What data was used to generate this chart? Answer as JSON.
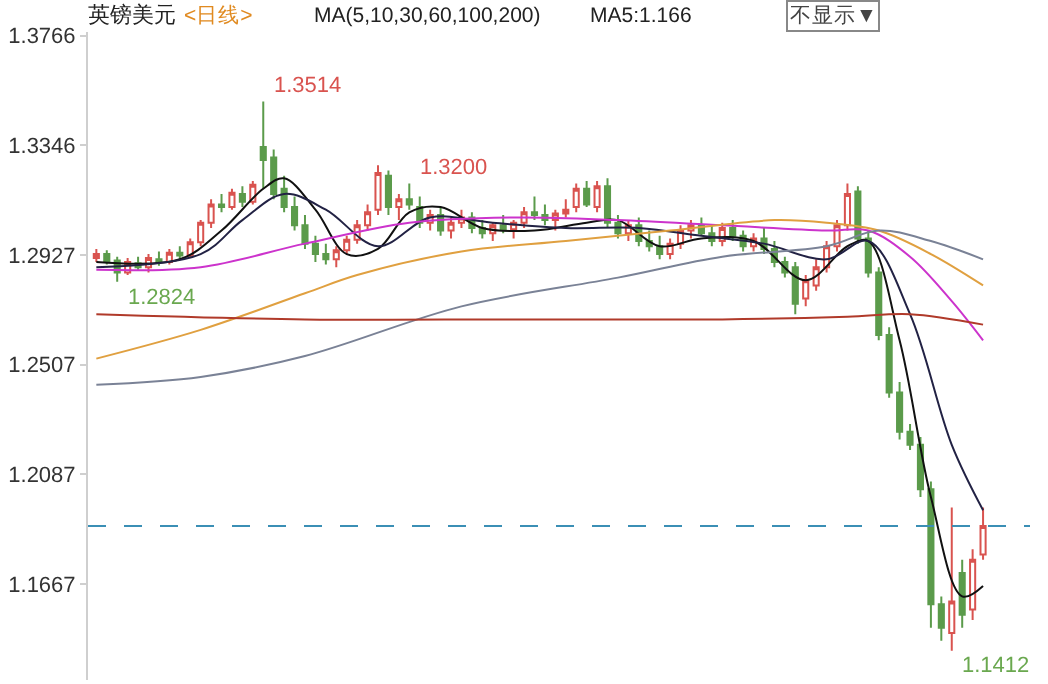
{
  "chart_data": {
    "type": "candlestick",
    "title": "英镑美元",
    "annotations": [
      "<日线>",
      "MA(5,10,30,60,100,200)",
      "MA5:1.166",
      "不显示▼",
      "1.3514",
      "1.3200",
      "1.2824",
      "1.1412"
    ],
    "categories": [
      null,
      null,
      null,
      null,
      null,
      null,
      null,
      null,
      null,
      null,
      null,
      null,
      null,
      null,
      null,
      null,
      null,
      null,
      null,
      null,
      null,
      null,
      null,
      null,
      null,
      null,
      null,
      null,
      null,
      null,
      null,
      null,
      null,
      null,
      null,
      null,
      null,
      null,
      null,
      null,
      null,
      null,
      null,
      null,
      null,
      null,
      null,
      null,
      null,
      null,
      null,
      null,
      null,
      null,
      null,
      null,
      null,
      null,
      null,
      null,
      null,
      null,
      null,
      null,
      null,
      null,
      null,
      null,
      null,
      null,
      null,
      null,
      null,
      null,
      null,
      null,
      null,
      null,
      null,
      null,
      null,
      null,
      null,
      null,
      null,
      null
    ],
    "colors": [
      "#d9534f",
      "#5b9b4b",
      "#5b9b4b",
      "#d9534f",
      "#5b9b4b",
      "#d9534f",
      "#5b9b4b",
      "#d9534f",
      "#5b9b4b",
      "#d9534f",
      "#d9534f",
      "#d9534f",
      "#5b9b4b",
      "#d9534f",
      "#5b9b4b",
      "#d9534f",
      "#5b9b4b",
      "#5b9b4b",
      "#5b9b4b",
      "#5b9b4b",
      "#5b9b4b",
      "#5b9b4b",
      "#5b9b4b",
      "#d9534f",
      "#d9534f",
      "#d9534f",
      "#d9534f",
      "#d9534f",
      "#5b9b4b",
      "#d9534f",
      "#5b9b4b",
      "#5b9b4b",
      "#d9534f",
      "#5b9b4b",
      "#d9534f",
      "#d9534f",
      "#5b9b4b",
      "#5b9b4b",
      "#d9534f",
      "#5b9b4b",
      "#d9534f",
      "#d9534f",
      "#5b9b4b",
      "#5b9b4b",
      "#d9534f",
      "#d9534f",
      "#d9534f",
      "#5b9b4b",
      "#d9534f",
      "#5b9b4b",
      "#5b9b4b",
      "#d9534f",
      "#5b9b4b",
      "#5b9b4b",
      "#5b9b4b",
      "#d9534f",
      "#d9534f",
      "#d9534f",
      "#5b9b4b",
      "#5b9b4b",
      "#d9534f",
      "#5b9b4b",
      "#5b9b4b",
      "#d9534f",
      "#5b9b4b",
      "#5b9b4b",
      "#5b9b4b",
      "#5b9b4b",
      "#d9534f",
      "#d9534f",
      "#d9534f",
      "#d9534f",
      "#d9534f",
      "#5b9b4b",
      "#5b9b4b",
      "#5b9b4b",
      "#5b9b4b",
      "#5b9b4b",
      "#5b9b4b",
      "#5b9b4b",
      "#5b9b4b",
      "#5b9b4b",
      "#d9534f",
      "#5b9b4b",
      "#d9534f",
      "#d9534f"
    ],
    "ohlc": [
      [
        1.2915,
        1.295,
        1.29,
        1.293
      ],
      [
        1.293,
        1.2945,
        1.289,
        1.29
      ],
      [
        1.2905,
        1.292,
        1.2824,
        1.286
      ],
      [
        1.286,
        1.2915,
        1.285,
        1.29
      ],
      [
        1.2895,
        1.292,
        1.287,
        1.288
      ],
      [
        1.288,
        1.293,
        1.286,
        1.2915
      ],
      [
        1.291,
        1.294,
        1.2885,
        1.29
      ],
      [
        1.29,
        1.295,
        1.289,
        1.2935
      ],
      [
        1.2935,
        1.296,
        1.291,
        1.2925
      ],
      [
        1.2925,
        1.299,
        1.2915,
        1.2975
      ],
      [
        1.2975,
        1.306,
        1.296,
        1.305
      ],
      [
        1.305,
        1.314,
        1.303,
        1.312
      ],
      [
        1.312,
        1.316,
        1.309,
        1.311
      ],
      [
        1.311,
        1.318,
        1.31,
        1.3165
      ],
      [
        1.316,
        1.319,
        1.311,
        1.313
      ],
      [
        1.313,
        1.321,
        1.312,
        1.3195
      ],
      [
        1.334,
        1.3514,
        1.318,
        1.329
      ],
      [
        1.33,
        1.333,
        1.314,
        1.316
      ],
      [
        1.318,
        1.323,
        1.309,
        1.311
      ],
      [
        1.311,
        1.315,
        1.302,
        1.304
      ],
      [
        1.304,
        1.308,
        1.295,
        1.297
      ],
      [
        1.297,
        1.3,
        1.29,
        1.293
      ],
      [
        1.293,
        1.297,
        1.289,
        1.291
      ],
      [
        1.291,
        1.296,
        1.288,
        1.2945
      ],
      [
        1.2945,
        1.3,
        1.293,
        1.2985
      ],
      [
        1.2985,
        1.306,
        1.297,
        1.304
      ],
      [
        1.304,
        1.312,
        1.302,
        1.309
      ],
      [
        1.31,
        1.327,
        1.308,
        1.324
      ],
      [
        1.323,
        1.325,
        1.308,
        1.311
      ],
      [
        1.311,
        1.316,
        1.306,
        1.314
      ],
      [
        1.314,
        1.32,
        1.31,
        1.312
      ],
      [
        1.311,
        1.315,
        1.303,
        1.305
      ],
      [
        1.305,
        1.31,
        1.302,
        1.308
      ],
      [
        1.308,
        1.311,
        1.3,
        1.302
      ],
      [
        1.302,
        1.307,
        1.299,
        1.305
      ],
      [
        1.305,
        1.31,
        1.303,
        1.307
      ],
      [
        1.307,
        1.309,
        1.301,
        1.303
      ],
      [
        1.303,
        1.306,
        1.299,
        1.301
      ],
      [
        1.301,
        1.305,
        1.298,
        1.304
      ],
      [
        1.304,
        1.308,
        1.301,
        1.3025
      ],
      [
        1.3025,
        1.306,
        1.299,
        1.305
      ],
      [
        1.305,
        1.311,
        1.303,
        1.309
      ],
      [
        1.309,
        1.315,
        1.306,
        1.308
      ],
      [
        1.308,
        1.312,
        1.304,
        1.306
      ],
      [
        1.306,
        1.31,
        1.302,
        1.3085
      ],
      [
        1.3085,
        1.314,
        1.307,
        1.31
      ],
      [
        1.311,
        1.32,
        1.309,
        1.318
      ],
      [
        1.318,
        1.321,
        1.311,
        1.312
      ],
      [
        1.311,
        1.321,
        1.309,
        1.319
      ],
      [
        1.319,
        1.322,
        1.303,
        1.305
      ],
      [
        1.305,
        1.308,
        1.299,
        1.301
      ],
      [
        1.301,
        1.306,
        1.298,
        1.304
      ],
      [
        1.304,
        1.307,
        1.296,
        1.298
      ],
      [
        1.298,
        1.302,
        1.294,
        1.296
      ],
      [
        1.296,
        1.3,
        1.291,
        1.293
      ],
      [
        1.293,
        1.299,
        1.291,
        1.297
      ],
      [
        1.297,
        1.304,
        1.295,
        1.302
      ],
      [
        1.302,
        1.306,
        1.299,
        1.304
      ],
      [
        1.304,
        1.307,
        1.3,
        1.301
      ],
      [
        1.301,
        1.304,
        1.296,
        1.298
      ],
      [
        1.298,
        1.305,
        1.296,
        1.303
      ],
      [
        1.303,
        1.306,
        1.298,
        1.3
      ],
      [
        1.3,
        1.302,
        1.294,
        1.296
      ],
      [
        1.296,
        1.301,
        1.294,
        1.299
      ],
      [
        1.299,
        1.303,
        1.293,
        1.295
      ],
      [
        1.295,
        1.298,
        1.288,
        1.29
      ],
      [
        1.29,
        1.292,
        1.284,
        1.286
      ],
      [
        1.288,
        1.29,
        1.27,
        1.274
      ],
      [
        1.276,
        1.285,
        1.273,
        1.283
      ],
      [
        1.281,
        1.291,
        1.279,
        1.288
      ],
      [
        1.288,
        1.298,
        1.286,
        1.296
      ],
      [
        1.296,
        1.306,
        1.294,
        1.304
      ],
      [
        1.304,
        1.32,
        1.302,
        1.316
      ],
      [
        1.317,
        1.319,
        1.297,
        1.299
      ],
      [
        1.299,
        1.302,
        1.284,
        1.286
      ],
      [
        1.286,
        1.288,
        1.26,
        1.262
      ],
      [
        1.262,
        1.265,
        1.238,
        1.24
      ],
      [
        1.24,
        1.244,
        1.222,
        1.225
      ],
      [
        1.225,
        1.228,
        1.218,
        1.22
      ],
      [
        1.22,
        1.223,
        1.2,
        1.203
      ],
      [
        1.203,
        1.206,
        1.15,
        1.159
      ],
      [
        1.159,
        1.162,
        1.145,
        1.15
      ],
      [
        1.148,
        1.196,
        1.1412,
        1.16
      ],
      [
        1.171,
        1.176,
        1.15,
        1.155
      ],
      [
        1.157,
        1.18,
        1.153,
        1.176
      ],
      [
        1.178,
        1.196,
        1.176,
        1.1889
      ]
    ],
    "series": [
      {
        "type": "line",
        "color": "#111111",
        "values": [
          1.29,
          null,
          null,
          null,
          null,
          null,
          null,
          null,
          1.291,
          null,
          null,
          null,
          1.302,
          null,
          null,
          null,
          1.318,
          null,
          1.322,
          null,
          null,
          1.31,
          null,
          null,
          1.293,
          null,
          null,
          1.295,
          null,
          null,
          1.309,
          null,
          null,
          1.311,
          null,
          null,
          null,
          1.303,
          null,
          null,
          null,
          null,
          1.302,
          null,
          null,
          null,
          null,
          1.305,
          null,
          null,
          1.306,
          null,
          null,
          null,
          1.296,
          null,
          null,
          null,
          1.299,
          null,
          null,
          null,
          null,
          1.298,
          null,
          null,
          null,
          null,
          1.283,
          null,
          null,
          null,
          1.296,
          null,
          1.298,
          null,
          null,
          1.26,
          null,
          null,
          1.2,
          null,
          null,
          1.162,
          null,
          1.166
        ]
      },
      {
        "type": "line",
        "color": "#222244",
        "values": [
          1.288,
          null,
          null,
          null,
          null,
          null,
          null,
          null,
          null,
          null,
          1.293,
          null,
          null,
          null,
          1.306,
          null,
          null,
          null,
          1.316,
          null,
          null,
          null,
          1.31,
          null,
          null,
          null,
          null,
          1.296,
          null,
          null,
          null,
          null,
          1.307,
          null,
          null,
          null,
          null,
          null,
          1.305,
          null,
          null,
          null,
          null,
          null,
          null,
          1.303,
          null,
          null,
          null,
          null,
          null,
          null,
          1.303,
          null,
          null,
          null,
          null,
          null,
          1.3,
          null,
          null,
          null,
          null,
          null,
          1.297,
          null,
          null,
          null,
          null,
          null,
          1.291,
          null,
          null,
          null,
          1.298,
          null,
          null,
          null,
          1.27,
          null,
          null,
          null,
          1.22,
          null,
          null,
          1.195
        ]
      },
      {
        "type": "line",
        "color": "#cc33cc",
        "values": [
          1.287,
          null,
          null,
          null,
          null,
          null,
          null,
          null,
          null,
          null,
          1.288,
          null,
          null,
          null,
          null,
          null,
          null,
          null,
          null,
          null,
          1.297,
          null,
          null,
          null,
          null,
          null,
          null,
          null,
          null,
          null,
          1.305,
          null,
          null,
          null,
          null,
          null,
          null,
          null,
          null,
          null,
          1.307,
          null,
          null,
          null,
          null,
          null,
          null,
          null,
          null,
          null,
          1.306,
          null,
          null,
          null,
          null,
          null,
          null,
          null,
          null,
          null,
          1.304,
          null,
          null,
          null,
          null,
          null,
          null,
          null,
          null,
          null,
          1.302,
          null,
          null,
          null,
          1.302,
          null,
          null,
          null,
          1.292,
          null,
          null,
          null,
          1.275,
          null,
          null,
          1.26
        ]
      },
      {
        "type": "line",
        "color": "#e0a040",
        "values": [
          1.253,
          null,
          null,
          null,
          null,
          null,
          null,
          null,
          null,
          null,
          1.264,
          null,
          null,
          null,
          null,
          null,
          null,
          null,
          null,
          null,
          1.278,
          null,
          null,
          null,
          null,
          1.285,
          null,
          null,
          null,
          null,
          null,
          null,
          null,
          null,
          null,
          1.294,
          null,
          null,
          null,
          null,
          null,
          null,
          null,
          null,
          null,
          1.298,
          null,
          null,
          null,
          null,
          null,
          null,
          null,
          null,
          null,
          1.302,
          null,
          null,
          null,
          null,
          null,
          null,
          null,
          null,
          null,
          1.306,
          null,
          null,
          null,
          null,
          1.305,
          null,
          null,
          null,
          null,
          1.302,
          null,
          null,
          null,
          null,
          1.293,
          null,
          null,
          null,
          null,
          1.281
        ]
      },
      {
        "type": "line",
        "color": "#7a8296",
        "values": [
          1.243,
          null,
          null,
          null,
          null,
          null,
          null,
          null,
          null,
          null,
          1.246,
          null,
          null,
          null,
          null,
          null,
          null,
          null,
          null,
          null,
          1.254,
          null,
          null,
          null,
          null,
          null,
          null,
          null,
          null,
          null,
          null,
          null,
          null,
          null,
          null,
          1.273,
          null,
          null,
          null,
          null,
          null,
          null,
          null,
          null,
          null,
          null,
          null,
          null,
          null,
          null,
          1.284,
          null,
          null,
          null,
          null,
          null,
          null,
          null,
          null,
          null,
          1.292,
          null,
          null,
          null,
          null,
          null,
          null,
          null,
          null,
          null,
          1.296,
          null,
          null,
          null,
          null,
          1.302,
          null,
          null,
          null,
          null,
          1.298,
          null,
          null,
          null,
          null,
          1.291
        ]
      },
      {
        "type": "line",
        "color": "#b03a2a",
        "values": [
          1.27,
          null,
          null,
          null,
          null,
          null,
          null,
          null,
          null,
          null,
          null,
          null,
          null,
          null,
          null,
          null,
          null,
          null,
          null,
          null,
          1.268,
          null,
          null,
          null,
          null,
          null,
          null,
          null,
          null,
          null,
          null,
          null,
          null,
          null,
          null,
          null,
          null,
          null,
          null,
          null,
          1.268,
          null,
          null,
          null,
          null,
          null,
          null,
          null,
          null,
          null,
          null,
          null,
          null,
          null,
          null,
          null,
          null,
          null,
          null,
          null,
          1.268,
          null,
          null,
          null,
          null,
          null,
          null,
          null,
          null,
          null,
          null,
          null,
          1.269,
          null,
          null,
          null,
          null,
          null,
          1.27,
          null,
          null,
          null,
          null,
          null,
          null,
          1.266
        ]
      }
    ],
    "ref_lines": [
      {
        "axis": "y",
        "value": 1.1889,
        "color": "#3b8fb5",
        "line_style": "dashed"
      }
    ],
    "ylim": [
      1.13,
      1.378
    ],
    "yticks": [
      1.3766,
      1.3346,
      1.2927,
      1.2507,
      1.2087,
      1.1667
    ],
    "tick_labels": "y"
  }
}
